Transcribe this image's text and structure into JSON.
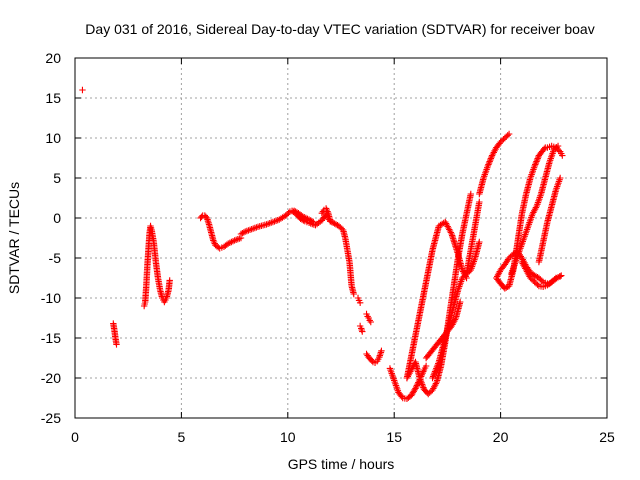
{
  "chart_data": {
    "type": "scatter",
    "title": "Day 031 of 2016, Sidereal Day-to-day VTEC variation (SDTVAR) for receiver boav",
    "xlabel": "GPS time / hours",
    "ylabel": "SDTVAR / TECUs",
    "xlim": [
      0,
      25
    ],
    "ylim": [
      -25,
      20
    ],
    "xticks": [
      0,
      5,
      10,
      15,
      20,
      25
    ],
    "yticks": [
      -25,
      -20,
      -15,
      -10,
      -5,
      0,
      5,
      10,
      15,
      20
    ],
    "grid": true,
    "marker": "+",
    "color": "#ff0000",
    "series": [
      {
        "name": "seg1",
        "x": [
          0.35
        ],
        "y": [
          16.0
        ]
      },
      {
        "name": "seg2",
        "x": [
          1.8,
          1.85,
          1.9,
          1.95
        ],
        "y": [
          -13.2,
          -14.0,
          -15.0,
          -15.8
        ]
      },
      {
        "name": "seg3",
        "x": [
          3.25,
          3.3,
          3.35,
          3.4,
          3.45,
          3.5,
          3.55,
          3.6
        ],
        "y": [
          -11.0,
          -10.5,
          -8.5,
          -6.0,
          -4.0,
          -2.0,
          -1.0,
          -1.5
        ]
      },
      {
        "name": "seg4",
        "x": [
          3.6,
          3.7,
          3.8,
          3.9,
          4.0,
          4.1,
          4.2,
          4.3,
          4.4,
          4.45
        ],
        "y": [
          -1.5,
          -3.0,
          -5.5,
          -7.5,
          -9.0,
          -10.0,
          -10.5,
          -10.0,
          -9.0,
          -7.8
        ]
      },
      {
        "name": "seg5",
        "x": [
          5.9,
          6.0,
          6.1,
          6.2,
          6.3,
          6.4,
          6.5,
          6.6,
          6.8,
          7.0,
          7.2,
          7.5,
          7.8
        ],
        "y": [
          0.0,
          0.3,
          0.3,
          0.0,
          -0.8,
          -1.8,
          -2.8,
          -3.4,
          -3.8,
          -3.6,
          -3.2,
          -2.8,
          -2.5
        ]
      },
      {
        "name": "seg6",
        "x": [
          7.8,
          8.0,
          8.3,
          8.6,
          9.0,
          9.3,
          9.6,
          9.9,
          10.1,
          10.3,
          10.5,
          10.7,
          11.0,
          11.2
        ],
        "y": [
          -2.0,
          -1.7,
          -1.4,
          -1.1,
          -0.8,
          -0.5,
          -0.2,
          0.3,
          0.8,
          0.9,
          0.6,
          0.2,
          -0.2,
          -0.5
        ]
      },
      {
        "name": "seg7",
        "x": [
          10.2,
          10.4,
          10.6,
          10.8,
          11.0,
          11.3,
          11.6,
          11.8,
          12.0
        ],
        "y": [
          0.9,
          0.5,
          -0.1,
          -0.4,
          -0.6,
          -0.9,
          -0.3,
          0.4,
          -0.4
        ]
      },
      {
        "name": "seg8",
        "x": [
          11.6,
          11.7,
          11.8,
          11.9,
          12.0
        ],
        "y": [
          0.6,
          1.0,
          1.2,
          0.6,
          -0.4
        ]
      },
      {
        "name": "seg9",
        "x": [
          12.0,
          12.2,
          12.4,
          12.6,
          12.7,
          12.8,
          12.9,
          12.95,
          13.0,
          13.1
        ],
        "y": [
          -0.4,
          -0.7,
          -1.0,
          -1.5,
          -2.5,
          -4.0,
          -5.5,
          -7.0,
          -8.5,
          -9.5
        ]
      },
      {
        "name": "seg10",
        "x": [
          13.3,
          13.35,
          13.4
        ],
        "y": [
          -10.0,
          -10.3,
          -10.6
        ]
      },
      {
        "name": "seg11",
        "x": [
          13.4,
          13.45,
          13.5
        ],
        "y": [
          -13.5,
          -13.8,
          -14.2
        ]
      },
      {
        "name": "seg12",
        "x": [
          13.7,
          13.75,
          13.8,
          13.85,
          13.9
        ],
        "y": [
          -12.0,
          -12.3,
          -12.5,
          -12.8,
          -13.0
        ]
      },
      {
        "name": "seg13",
        "x": [
          13.7,
          13.8,
          13.9,
          14.0,
          14.1,
          14.2,
          14.3,
          14.4
        ],
        "y": [
          -17.0,
          -17.4,
          -17.7,
          -18.0,
          -18.1,
          -17.9,
          -17.4,
          -16.6
        ]
      },
      {
        "name": "seg14",
        "x": [
          14.8,
          15.0,
          15.2,
          15.4,
          15.6,
          15.8,
          16.0,
          16.2,
          16.4,
          16.5
        ],
        "y": [
          -18.8,
          -20.3,
          -21.8,
          -22.5,
          -22.6,
          -22.2,
          -21.3,
          -20.2,
          -19.0,
          -18.5
        ]
      },
      {
        "name": "seg15",
        "x": [
          15.6,
          15.8,
          16.0,
          16.2,
          16.4,
          16.6,
          16.8,
          17.0,
          17.2,
          17.4,
          17.6,
          17.8,
          18.0,
          18.2,
          18.4,
          18.6
        ],
        "y": [
          -20.0,
          -19.0,
          -18.0,
          -20.0,
          -21.4,
          -22.0,
          -21.5,
          -20.5,
          -18.5,
          -15.5,
          -12.0,
          -8.5,
          -5.0,
          -2.0,
          0.5,
          3.0
        ]
      },
      {
        "name": "seg16",
        "x": [
          15.6,
          15.9,
          16.2,
          16.5,
          16.8,
          17.1,
          17.4,
          17.7,
          18.0,
          18.2,
          18.4
        ],
        "y": [
          -20.0,
          -16.0,
          -12.0,
          -8.0,
          -4.0,
          -1.0,
          -0.5,
          -2.0,
          -4.5,
          -6.5,
          -7.5
        ]
      },
      {
        "name": "seg17",
        "x": [
          16.5,
          16.8,
          17.1,
          17.4,
          17.7,
          17.9,
          18.0,
          18.1
        ],
        "y": [
          -17.5,
          -16.5,
          -15.5,
          -14.5,
          -13.5,
          -12.5,
          -11.5,
          -10.5
        ]
      },
      {
        "name": "seg18",
        "x": [
          16.8,
          17.1,
          17.4,
          17.7,
          18.0,
          18.2,
          18.4,
          18.6,
          18.8,
          19.0
        ],
        "y": [
          -20.0,
          -18.0,
          -15.0,
          -12.0,
          -9.0,
          -7.5,
          -7.0,
          -6.5,
          -5.0,
          -3.0
        ]
      },
      {
        "name": "seg19",
        "x": [
          18.4,
          18.5,
          18.6,
          18.7,
          18.8,
          18.9,
          19.0
        ],
        "y": [
          -7.0,
          -5.5,
          -4.0,
          -2.5,
          -1.0,
          0.5,
          2.0
        ]
      },
      {
        "name": "seg20",
        "x": [
          19.0,
          19.2,
          19.4,
          19.6,
          19.8,
          20.0,
          20.2,
          20.4
        ],
        "y": [
          3.0,
          5.0,
          6.5,
          7.8,
          8.8,
          9.5,
          10.0,
          10.5
        ]
      },
      {
        "name": "seg21",
        "x": [
          19.8,
          20.0,
          20.2,
          20.4,
          20.6,
          20.8,
          21.0,
          21.2,
          21.4,
          21.6,
          21.8,
          22.0,
          22.2
        ],
        "y": [
          -7.5,
          -6.5,
          -5.8,
          -5.0,
          -4.5,
          -4.2,
          -5.0,
          -6.0,
          -6.8,
          -7.2,
          -7.5,
          -8.0,
          -8.2
        ]
      },
      {
        "name": "seg22",
        "x": [
          19.8,
          20.0,
          20.2,
          20.4,
          20.6,
          20.8,
          21.0,
          21.2,
          21.4,
          21.6,
          21.8,
          22.0,
          22.1
        ],
        "y": [
          -7.5,
          -8.2,
          -8.8,
          -8.5,
          -6.5,
          -3.0,
          0.5,
          3.0,
          5.0,
          6.5,
          7.8,
          8.5,
          8.8
        ]
      },
      {
        "name": "seg23",
        "x": [
          20.5,
          20.7,
          20.9,
          21.1,
          21.3,
          21.5,
          21.7,
          21.9,
          22.1,
          22.3,
          22.5,
          22.7
        ],
        "y": [
          -7.0,
          -5.5,
          -4.0,
          -2.5,
          -1.0,
          0.5,
          1.5,
          3.0,
          5.0,
          7.0,
          8.5,
          9.0
        ]
      },
      {
        "name": "seg24",
        "x": [
          21.0,
          21.2,
          21.4,
          21.6,
          21.8,
          22.0,
          22.2,
          22.4,
          22.6,
          22.8
        ],
        "y": [
          -5.5,
          -6.5,
          -7.5,
          -8.0,
          -8.5,
          -8.6,
          -8.4,
          -8.0,
          -7.5,
          -7.3
        ]
      },
      {
        "name": "seg25",
        "x": [
          21.8,
          22.0,
          22.2,
          22.4,
          22.6,
          22.8
        ],
        "y": [
          -5.5,
          -3.0,
          -0.5,
          1.5,
          3.5,
          5.0
        ]
      },
      {
        "name": "seg26",
        "x": [
          22.2,
          22.4,
          22.6,
          22.8,
          22.9
        ],
        "y": [
          8.8,
          9.0,
          8.8,
          8.3,
          7.8
        ]
      },
      {
        "name": "seg27",
        "x": [
          22.3,
          22.5,
          22.7,
          22.85
        ],
        "y": [
          -8.2,
          -7.8,
          -7.4,
          -7.2
        ]
      }
    ]
  }
}
